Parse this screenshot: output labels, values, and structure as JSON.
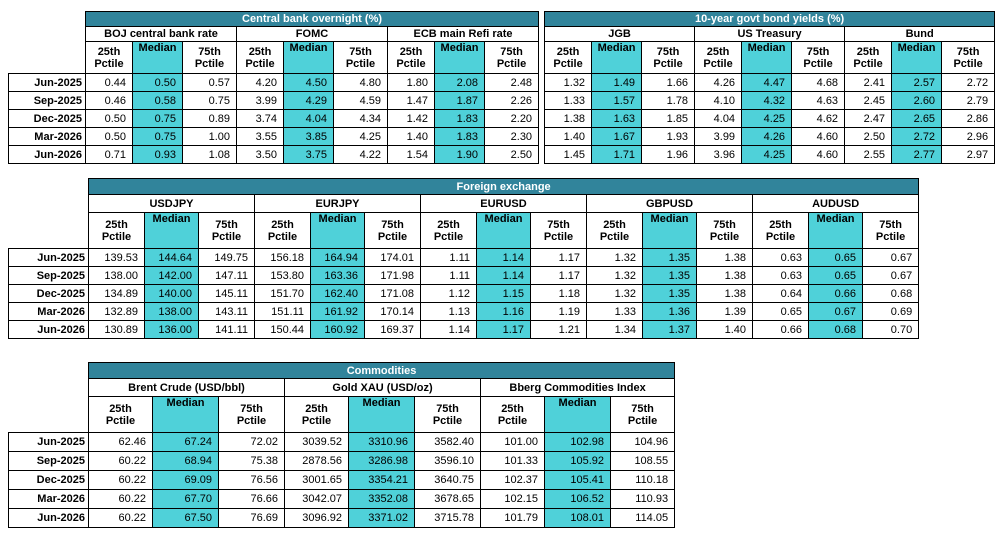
{
  "colors": {
    "title_bg": "#31849b",
    "median_bg": "#4fd1d9"
  },
  "row_labels": [
    "Jun-2025",
    "Sep-2025",
    "Dec-2025",
    "Mar-2026",
    "Jun-2026"
  ],
  "stat_headers": {
    "p25_top": "25th",
    "p25_bottom": "Pctile",
    "median": "Median",
    "p75_top": "75th",
    "p75_bottom": "Pctile"
  },
  "central_bank": {
    "title": "Central bank overnight (%)",
    "groups": [
      "BOJ central bank rate",
      "FOMC",
      "ECB main Refi rate"
    ],
    "rows": [
      [
        "0.44",
        "0.50",
        "0.57",
        "4.20",
        "4.50",
        "4.80",
        "1.80",
        "2.08",
        "2.48"
      ],
      [
        "0.46",
        "0.58",
        "0.75",
        "3.99",
        "4.29",
        "4.59",
        "1.47",
        "1.87",
        "2.26"
      ],
      [
        "0.50",
        "0.75",
        "0.89",
        "3.74",
        "4.04",
        "4.34",
        "1.42",
        "1.83",
        "2.20"
      ],
      [
        "0.50",
        "0.75",
        "1.00",
        "3.55",
        "3.85",
        "4.25",
        "1.40",
        "1.83",
        "2.30"
      ],
      [
        "0.71",
        "0.93",
        "1.08",
        "3.50",
        "3.75",
        "4.22",
        "1.54",
        "1.90",
        "2.50"
      ]
    ]
  },
  "bond_yields": {
    "title": "10-year govt bond yields (%)",
    "groups": [
      "JGB",
      "US Treasury",
      "Bund"
    ],
    "rows": [
      [
        "1.32",
        "1.49",
        "1.66",
        "4.26",
        "4.47",
        "4.68",
        "2.41",
        "2.57",
        "2.72"
      ],
      [
        "1.33",
        "1.57",
        "1.78",
        "4.10",
        "4.32",
        "4.63",
        "2.45",
        "2.60",
        "2.79"
      ],
      [
        "1.38",
        "1.63",
        "1.85",
        "4.04",
        "4.25",
        "4.62",
        "2.47",
        "2.65",
        "2.86"
      ],
      [
        "1.40",
        "1.67",
        "1.93",
        "3.99",
        "4.26",
        "4.60",
        "2.50",
        "2.72",
        "2.96"
      ],
      [
        "1.45",
        "1.71",
        "1.96",
        "3.96",
        "4.25",
        "4.60",
        "2.55",
        "2.77",
        "2.97"
      ]
    ]
  },
  "fx": {
    "title": "Foreign exchange",
    "groups": [
      "USDJPY",
      "EURJPY",
      "EURUSD",
      "GBPUSD",
      "AUDUSD"
    ],
    "rows": [
      [
        "139.53",
        "144.64",
        "149.75",
        "156.18",
        "164.94",
        "174.01",
        "1.11",
        "1.14",
        "1.17",
        "1.32",
        "1.35",
        "1.38",
        "0.63",
        "0.65",
        "0.67"
      ],
      [
        "138.00",
        "142.00",
        "147.11",
        "153.80",
        "163.36",
        "171.98",
        "1.11",
        "1.14",
        "1.17",
        "1.32",
        "1.35",
        "1.38",
        "0.63",
        "0.65",
        "0.67"
      ],
      [
        "134.89",
        "140.00",
        "145.11",
        "151.70",
        "162.40",
        "171.08",
        "1.12",
        "1.15",
        "1.18",
        "1.32",
        "1.35",
        "1.38",
        "0.64",
        "0.66",
        "0.68"
      ],
      [
        "132.89",
        "138.00",
        "143.11",
        "151.11",
        "161.92",
        "170.14",
        "1.13",
        "1.16",
        "1.19",
        "1.33",
        "1.36",
        "1.39",
        "0.65",
        "0.67",
        "0.69"
      ],
      [
        "130.89",
        "136.00",
        "141.11",
        "150.44",
        "160.92",
        "169.37",
        "1.14",
        "1.17",
        "1.21",
        "1.34",
        "1.37",
        "1.40",
        "0.66",
        "0.68",
        "0.70"
      ]
    ]
  },
  "commodities": {
    "title": "Commodities",
    "groups": [
      "Brent Crude (USD/bbl)",
      "Gold XAU (USD/oz)",
      "Bberg Commodities Index"
    ],
    "rows": [
      [
        "62.46",
        "67.24",
        "72.02",
        "3039.52",
        "3310.96",
        "3582.40",
        "101.00",
        "102.98",
        "104.96"
      ],
      [
        "60.22",
        "68.94",
        "75.38",
        "2878.56",
        "3286.98",
        "3596.10",
        "101.33",
        "105.92",
        "108.55"
      ],
      [
        "60.22",
        "69.09",
        "76.56",
        "3001.65",
        "3354.21",
        "3640.75",
        "102.37",
        "105.41",
        "110.18"
      ],
      [
        "60.22",
        "67.70",
        "76.66",
        "3042.07",
        "3352.08",
        "3678.65",
        "102.15",
        "106.52",
        "110.93"
      ],
      [
        "60.22",
        "67.50",
        "76.69",
        "3096.92",
        "3371.02",
        "3715.78",
        "101.79",
        "108.01",
        "114.05"
      ]
    ]
  }
}
